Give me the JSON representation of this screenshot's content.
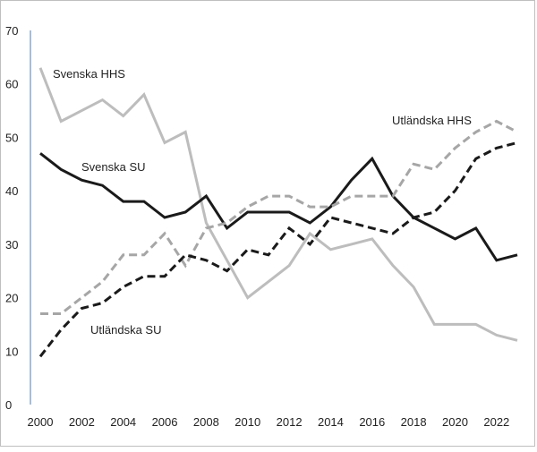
{
  "chart_data": {
    "type": "line",
    "title": "",
    "xlabel": "",
    "ylabel": "",
    "xlim": [
      2000,
      2023
    ],
    "ylim": [
      0,
      70
    ],
    "grid": false,
    "x_ticks": [
      2000,
      2002,
      2004,
      2006,
      2008,
      2010,
      2012,
      2014,
      2016,
      2018,
      2020,
      2022
    ],
    "y_ticks": [
      0,
      10,
      20,
      30,
      40,
      50,
      60,
      70
    ],
    "x": [
      2000,
      2001,
      2002,
      2003,
      2004,
      2005,
      2006,
      2007,
      2008,
      2009,
      2010,
      2011,
      2012,
      2013,
      2014,
      2015,
      2016,
      2017,
      2018,
      2019,
      2020,
      2021,
      2022,
      2023
    ],
    "series": [
      {
        "name": "Svenska HHS",
        "color": "#bdbdbd",
        "style": "solid",
        "values": [
          63,
          53,
          55,
          57,
          54,
          58,
          49,
          51,
          34,
          27,
          20,
          23,
          26,
          32,
          29,
          30,
          31,
          26,
          22,
          15,
          15,
          15,
          13,
          12
        ]
      },
      {
        "name": "Svenska SU",
        "color": "#1a1a1a",
        "style": "solid",
        "values": [
          47,
          44,
          42,
          41,
          38,
          38,
          35,
          36,
          39,
          33,
          36,
          36,
          36,
          34,
          37,
          42,
          46,
          39,
          35,
          33,
          31,
          33,
          27,
          28
        ]
      },
      {
        "name": "Utländska HHS",
        "color": "#a6a6a6",
        "style": "dashed",
        "values": [
          17,
          17,
          20,
          23,
          28,
          28,
          32,
          26,
          33,
          34,
          37,
          39,
          39,
          37,
          37,
          39,
          39,
          39,
          45,
          44,
          48,
          51,
          53,
          51
        ]
      },
      {
        "name": "Utländska SU",
        "color": "#1a1a1a",
        "style": "dashed",
        "values": [
          9,
          14,
          18,
          19,
          22,
          24,
          24,
          28,
          27,
          25,
          29,
          28,
          33,
          30,
          35,
          34,
          33,
          32,
          35,
          36,
          40,
          46,
          48,
          49
        ]
      }
    ]
  }
}
